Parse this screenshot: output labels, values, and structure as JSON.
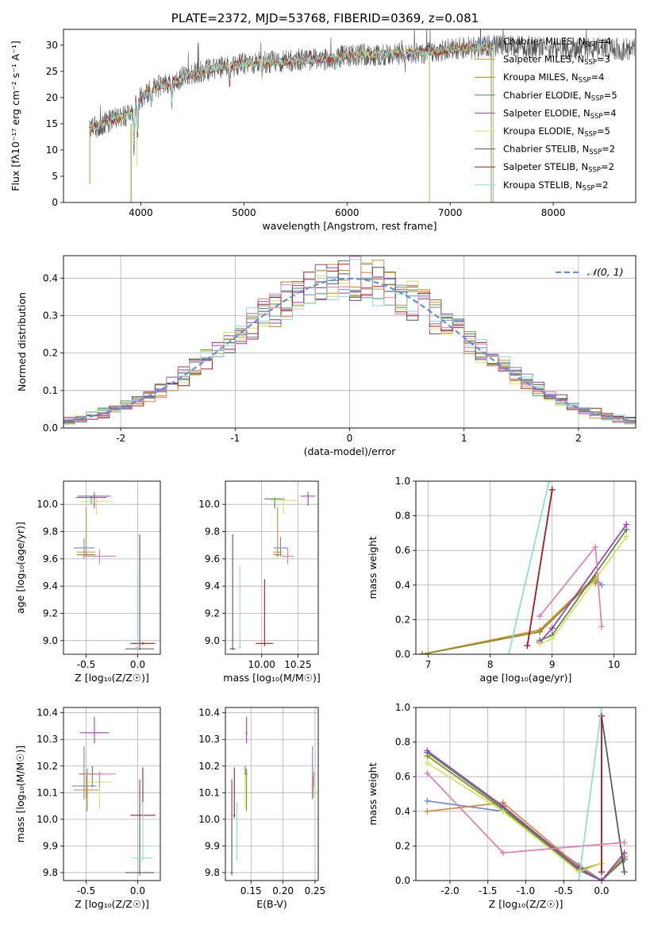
{
  "figure_title": "PLATE=2372, MJD=53768, FIBERID=0369, z=0.081",
  "colors": {
    "series": [
      "#6a8ad8",
      "#dd8833",
      "#8f8f1a",
      "#4f8a4f",
      "#9a3fb8",
      "#d8e060",
      "#555555",
      "#b01c1c",
      "#88dddd"
    ],
    "pink": "#e07fb0",
    "normal_fit": "#6090dd"
  },
  "chart_data": [
    {
      "id": "spectrum",
      "type": "line",
      "title": "PLATE=2372, MJD=53768, FIBERID=0369, z=0.081",
      "xlabel": "wavelength [Angstrom, rest frame]",
      "ylabel": "Flux [fλ10⁻¹⁷ erg cm⁻² s⁻¹ A⁻¹]",
      "xlim": [
        3250,
        8800
      ],
      "ylim": [
        0,
        33
      ],
      "xticks": [
        4000,
        5000,
        6000,
        7000,
        8000
      ],
      "yticks": [
        0,
        5,
        10,
        15,
        20,
        25,
        30
      ],
      "legend_placement": "right",
      "grid": false,
      "series": [
        {
          "name": "Chabrier MILES, N",
          "sub": "SSP",
          "tail": "=4",
          "end": 7400
        },
        {
          "name": "Salpeter MILES, N",
          "sub": "SSP",
          "tail": "=3",
          "end": 7400
        },
        {
          "name": "Kroupa MILES, N",
          "sub": "SSP",
          "tail": "=4",
          "end": 7400
        },
        {
          "name": "Chabrier ELODIE, N",
          "sub": "SSP",
          "tail": "=5",
          "end": 6800
        },
        {
          "name": "Salpeter ELODIE, N",
          "sub": "SSP",
          "tail": "=4",
          "end": 6800
        },
        {
          "name": "Kroupa ELODIE, N",
          "sub": "SSP",
          "tail": "=5",
          "end": 6800
        },
        {
          "name": "Chabrier STELIB, N",
          "sub": "SSP",
          "tail": "=2",
          "end": 8800
        },
        {
          "name": "Salpeter STELIB, N",
          "sub": "SSP",
          "tail": "=2",
          "end": 7420
        },
        {
          "name": "Kroupa STELIB, N",
          "sub": "SSP",
          "tail": "=2",
          "end": 7420
        }
      ],
      "continuum": [
        [
          3500,
          14
        ],
        [
          3700,
          15.5
        ],
        [
          3900,
          17
        ],
        [
          4000,
          20
        ],
        [
          4100,
          21.5
        ],
        [
          4300,
          23
        ],
        [
          4500,
          24.5
        ],
        [
          4700,
          25.5
        ],
        [
          5000,
          26.5
        ],
        [
          5200,
          26.7
        ],
        [
          5500,
          27
        ],
        [
          5800,
          27.4
        ],
        [
          6000,
          28
        ],
        [
          6300,
          28.2
        ],
        [
          6600,
          28.5
        ],
        [
          6800,
          28.7
        ],
        [
          7000,
          29.2
        ],
        [
          7300,
          29.6
        ],
        [
          7500,
          29.8
        ],
        [
          7800,
          29.6
        ],
        [
          8100,
          29.4
        ],
        [
          8400,
          29.3
        ],
        [
          8800,
          29.2
        ]
      ]
    },
    {
      "id": "residuals",
      "type": "histogram",
      "xlabel": "(data-model)/error",
      "ylabel": "Normed distribution",
      "xlim": [
        -2.5,
        2.5
      ],
      "ylim": [
        0,
        0.46
      ],
      "xticks": [
        -2,
        -1,
        0,
        1,
        2
      ],
      "yticks": [
        0.0,
        0.1,
        0.2,
        0.3,
        0.4
      ],
      "bin_width": 0.1,
      "grid": true,
      "legend": {
        "label": "𝒩(0, 1)",
        "placement": "upper right"
      },
      "normal": {
        "mean": 0,
        "sigma": 1
      }
    },
    {
      "id": "age-vs-Z",
      "type": "errorbar",
      "xlabel": "Z [log₁₀(Z/Z☉)]",
      "ylabel": "age  [log₁₀(age/yr)]",
      "xlim": [
        -0.72,
        0.22
      ],
      "ylim": [
        8.9,
        10.17
      ],
      "xticks": [
        -0.5,
        0.0
      ],
      "yticks": [
        9.0,
        9.2,
        9.4,
        9.6,
        9.8,
        10.0
      ],
      "grid": true,
      "points": [
        {
          "c": 0,
          "x": -0.52,
          "xe": 0.1,
          "y": 9.68,
          "ye": [
            0.08,
            0.07
          ]
        },
        {
          "c": 1,
          "x": -0.5,
          "xe": 0.09,
          "y": 9.65,
          "ye": [
            0.01,
            0.33
          ]
        },
        {
          "c": 2,
          "x": -0.5,
          "xe": 0.09,
          "y": 9.63,
          "ye": [
            0.01,
            0.01
          ]
        },
        {
          "c": 3,
          "x": -0.45,
          "xe": 0.15,
          "y": 10.05,
          "ye": [
            0.05,
            0.01
          ]
        },
        {
          "c": 4,
          "x": -0.42,
          "xe": 0.16,
          "y": 10.06,
          "ye": [
            0.09,
            0.03
          ]
        },
        {
          "c": 5,
          "x": -0.4,
          "xe": 0.16,
          "y": 10.02,
          "ye": [
            0.09,
            0.02
          ]
        },
        {
          "c": 6,
          "x": 0.02,
          "xe": 0.14,
          "y": 8.94,
          "ye": [
            0.01,
            0.84
          ]
        },
        {
          "c": 7,
          "x": 0.05,
          "xe": 0.12,
          "y": 8.98,
          "ye": [
            0.01,
            0.01
          ]
        },
        {
          "c": 8,
          "x": 0.0,
          "xe": 0.02,
          "y": 8.95,
          "ye": [
            0.01,
            0.6
          ]
        },
        {
          "c": "pink",
          "x": -0.37,
          "xe": 0.16,
          "y": 9.62,
          "ye": [
            0.06,
            0.05
          ]
        }
      ]
    },
    {
      "id": "age-vs-mass",
      "type": "errorbar",
      "xlabel": "mass [log₁₀(M/M☉)]",
      "ylabel": "",
      "xlim": [
        9.75,
        10.39
      ],
      "ylim": [
        8.9,
        10.17
      ],
      "xticks": [
        10.0,
        10.25
      ],
      "yticks": [
        9.0,
        9.2,
        9.4,
        9.6,
        9.8,
        10.0
      ],
      "grid": true,
      "points": [
        {
          "c": 0,
          "x": 10.13,
          "xe": 0.05,
          "y": 9.68,
          "ye": [
            0.06,
            0.08
          ]
        },
        {
          "c": 1,
          "x": 10.11,
          "xe": 0.03,
          "y": 9.65,
          "ye": [
            0.04,
            0.33
          ]
        },
        {
          "c": 2,
          "x": 10.11,
          "xe": 0.03,
          "y": 9.63,
          "ye": [
            0.01,
            0.01
          ]
        },
        {
          "c": 3,
          "x": 10.09,
          "xe": 0.07,
          "y": 10.04,
          "ye": [
            0.07,
            0.01
          ]
        },
        {
          "c": 4,
          "x": 10.32,
          "xe": 0.05,
          "y": 10.06,
          "ye": [
            0.07,
            0.03
          ]
        },
        {
          "c": 5,
          "x": 10.15,
          "xe": 0.09,
          "y": 10.03,
          "ye": [
            0.1,
            0.01
          ]
        },
        {
          "c": 6,
          "x": 9.8,
          "xe": 0.02,
          "y": 8.94,
          "ye": [
            0.01,
            0.84
          ]
        },
        {
          "c": 7,
          "x": 10.02,
          "xe": 0.06,
          "y": 8.98,
          "ye": [
            0.02,
            0.47
          ]
        },
        {
          "c": 8,
          "x": 9.85,
          "xe": 0.01,
          "y": 8.95,
          "ye": [
            0.01,
            0.6
          ]
        },
        {
          "c": "pink",
          "x": 10.18,
          "xe": 0.04,
          "y": 9.62,
          "ye": [
            0.06,
            0.06
          ]
        }
      ]
    },
    {
      "id": "weight-vs-age",
      "type": "line",
      "xlabel": "age  [log₁₀(age/yr)]",
      "ylabel": "mass weight",
      "xlim": [
        6.8,
        10.35
      ],
      "ylim": [
        0,
        1.0
      ],
      "xticks": [
        7,
        8,
        9,
        10
      ],
      "yticks": [
        0.0,
        0.2,
        0.4,
        0.6,
        0.8,
        1.0
      ],
      "grid": true,
      "series": [
        {
          "c": 0,
          "points": [
            [
              6.9,
              0.0
            ],
            [
              8.8,
              0.13
            ],
            [
              9.7,
              0.44
            ],
            [
              9.8,
              0.4
            ]
          ]
        },
        {
          "c": 1,
          "points": [
            [
              6.9,
              0.0
            ],
            [
              8.8,
              0.14
            ],
            [
              9.7,
              0.45
            ],
            [
              9.7,
              0.41
            ]
          ]
        },
        {
          "c": 2,
          "points": [
            [
              6.9,
              0.0
            ],
            [
              8.8,
              0.13
            ],
            [
              9.7,
              0.44
            ],
            [
              9.7,
              0.42
            ]
          ]
        },
        {
          "c": 3,
          "points": [
            [
              8.8,
              0.08
            ],
            [
              9.0,
              0.11
            ],
            [
              10.2,
              0.72
            ]
          ]
        },
        {
          "c": 4,
          "points": [
            [
              8.8,
              0.07
            ],
            [
              9.0,
              0.15
            ],
            [
              10.2,
              0.75
            ]
          ]
        },
        {
          "c": 5,
          "points": [
            [
              8.8,
              0.06
            ],
            [
              9.0,
              0.09
            ],
            [
              10.2,
              0.68
            ]
          ]
        },
        {
          "c": 6,
          "points": [
            [
              8.6,
              0.05
            ],
            [
              9.0,
              0.95
            ]
          ]
        },
        {
          "c": 7,
          "points": [
            [
              8.6,
              0.05
            ],
            [
              9.0,
              0.95
            ]
          ]
        },
        {
          "c": 8,
          "points": [
            [
              8.3,
              0.0
            ],
            [
              8.95,
              1.0
            ]
          ]
        },
        {
          "c": "pink",
          "points": [
            [
              8.8,
              0.22
            ],
            [
              9.7,
              0.62
            ],
            [
              9.8,
              0.16
            ]
          ]
        }
      ]
    },
    {
      "id": "mass-vs-Z",
      "type": "errorbar",
      "xlabel": "Z [log₁₀(Z/Z☉)]",
      "ylabel": "mass [log₁₀(M/M☉)]",
      "xlim": [
        -0.72,
        0.22
      ],
      "ylim": [
        9.77,
        10.42
      ],
      "xticks": [
        -0.5,
        0.0
      ],
      "yticks": [
        9.8,
        9.9,
        10.0,
        10.1,
        10.2,
        10.3,
        10.4
      ],
      "grid": true,
      "points": [
        {
          "c": 0,
          "x": -0.52,
          "xe": 0.12,
          "y": 10.125,
          "ye": [
            0.05,
            0.15
          ]
        },
        {
          "c": 1,
          "x": -0.5,
          "xe": 0.12,
          "y": 10.11,
          "ye": [
            0.03,
            0.05
          ]
        },
        {
          "c": 2,
          "x": -0.49,
          "xe": 0.08,
          "y": 10.17,
          "ye": [
            0.14,
            0.02
          ]
        },
        {
          "c": 3,
          "x": -0.44,
          "xe": 0.1,
          "y": 10.17,
          "ye": [
            0.05,
            0.03
          ]
        },
        {
          "c": 4,
          "x": -0.42,
          "xe": 0.14,
          "y": 10.325,
          "ye": [
            0.04,
            0.06
          ]
        },
        {
          "c": 5,
          "x": -0.37,
          "xe": 0.12,
          "y": 10.14,
          "ye": [
            0.1,
            0.03
          ]
        },
        {
          "c": 6,
          "x": 0.02,
          "xe": 0.14,
          "y": 9.8,
          "ye": [
            0.01,
            0.35
          ]
        },
        {
          "c": 7,
          "x": 0.05,
          "xe": 0.12,
          "y": 10.015,
          "ye": [
            0.01,
            0.18
          ]
        },
        {
          "c": 8,
          "x": 0.05,
          "xe": 0.1,
          "y": 9.855,
          "ye": [
            0.01,
            0.21
          ]
        },
        {
          "c": "pink",
          "x": -0.37,
          "xe": 0.16,
          "y": 10.17,
          "ye": [
            0.05,
            0.01
          ]
        }
      ]
    },
    {
      "id": "mass-vs-EBV",
      "type": "errorbar",
      "xlabel": "E(B-V)",
      "ylabel": "",
      "xlim": [
        0.11,
        0.255
      ],
      "ylim": [
        9.77,
        10.42
      ],
      "xticks": [
        0.15,
        0.2,
        0.25
      ],
      "yticks": [
        9.8,
        9.9,
        10.0,
        10.1,
        10.2,
        10.3,
        10.4
      ],
      "grid": true,
      "points": [
        {
          "c": 0,
          "x": 0.246,
          "xe": 0.0015,
          "y": 10.125,
          "ye": [
            0.05,
            0.15
          ]
        },
        {
          "c": 1,
          "x": 0.247,
          "xe": 0.0015,
          "y": 10.11,
          "ye": [
            0.03,
            0.05
          ]
        },
        {
          "c": 2,
          "x": 0.143,
          "xe": 0.0015,
          "y": 10.17,
          "ye": [
            0.14,
            0.02
          ]
        },
        {
          "c": 3,
          "x": 0.141,
          "xe": 0.0015,
          "y": 10.17,
          "ye": [
            0.05,
            0.03
          ]
        },
        {
          "c": 4,
          "x": 0.143,
          "xe": 0.0015,
          "y": 10.325,
          "ye": [
            0.04,
            0.06
          ]
        },
        {
          "c": 5,
          "x": 0.141,
          "xe": 0.0015,
          "y": 10.14,
          "ye": [
            0.1,
            0.03
          ]
        },
        {
          "c": 6,
          "x": 0.12,
          "xe": 0.0015,
          "y": 9.8,
          "ye": [
            0.01,
            0.35
          ]
        },
        {
          "c": 7,
          "x": 0.124,
          "xe": 0.0015,
          "y": 10.015,
          "ye": [
            0.01,
            0.18
          ]
        },
        {
          "c": 8,
          "x": 0.128,
          "xe": 0.0015,
          "y": 9.855,
          "ye": [
            0.01,
            0.21
          ]
        },
        {
          "c": "pink",
          "x": 0.248,
          "xe": 0.0015,
          "y": 10.17,
          "ye": [
            0.05,
            0.01
          ]
        }
      ]
    },
    {
      "id": "weight-vs-Z",
      "type": "line",
      "xlabel": "Z [log₁₀(Z/Z☉)]",
      "ylabel": "mass weight",
      "xlim": [
        -2.45,
        0.45
      ],
      "ylim": [
        0,
        1.0
      ],
      "xticks": [
        -2.0,
        -1.5,
        -1.0,
        -0.5,
        0.0
      ],
      "yticks": [
        0.0,
        0.2,
        0.4,
        0.6,
        0.8,
        1.0
      ],
      "grid": true,
      "series": [
        {
          "c": 0,
          "points": [
            [
              -2.3,
              0.46
            ],
            [
              -1.3,
              0.4
            ],
            [
              -0.3,
              0.09
            ],
            [
              0.0,
              0.0
            ],
            [
              0.3,
              0.13
            ]
          ]
        },
        {
          "c": 1,
          "points": [
            [
              -2.3,
              0.4
            ],
            [
              -1.3,
              0.45
            ],
            [
              -0.3,
              0.08
            ],
            [
              0.0,
              0.0
            ],
            [
              0.3,
              0.14
            ]
          ]
        },
        {
          "c": 2,
          "points": [
            [
              -2.3,
              0.72
            ],
            [
              -1.3,
              0.41
            ],
            [
              -0.3,
              0.06
            ],
            [
              0.0,
              0.1
            ]
          ]
        },
        {
          "c": 3,
          "points": [
            [
              -2.3,
              0.74
            ],
            [
              -1.3,
              0.42
            ],
            [
              -0.3,
              0.06
            ],
            [
              0.0,
              0.0
            ],
            [
              0.3,
              0.12
            ]
          ]
        },
        {
          "c": 4,
          "points": [
            [
              -2.3,
              0.75
            ],
            [
              -1.3,
              0.43
            ],
            [
              -0.3,
              0.07
            ],
            [
              0.0,
              0.0
            ],
            [
              0.3,
              0.16
            ]
          ]
        },
        {
          "c": 5,
          "points": [
            [
              -2.3,
              0.68
            ],
            [
              -1.3,
              0.4
            ],
            [
              -0.3,
              0.05
            ],
            [
              0.0,
              0.1
            ]
          ]
        },
        {
          "c": 6,
          "points": [
            [
              0.0,
              0.05
            ],
            [
              0.0,
              0.95
            ],
            [
              0.3,
              0.05
            ]
          ]
        },
        {
          "c": 7,
          "points": [
            [
              0.0,
              0.05
            ],
            [
              0.0,
              0.95
            ]
          ]
        },
        {
          "c": 8,
          "points": [
            [
              -0.3,
              0.0
            ],
            [
              0.0,
              1.0
            ]
          ]
        },
        {
          "c": "pink",
          "points": [
            [
              -2.3,
              0.62
            ],
            [
              -1.3,
              0.16
            ],
            [
              0.3,
              0.22
            ]
          ]
        }
      ]
    }
  ]
}
